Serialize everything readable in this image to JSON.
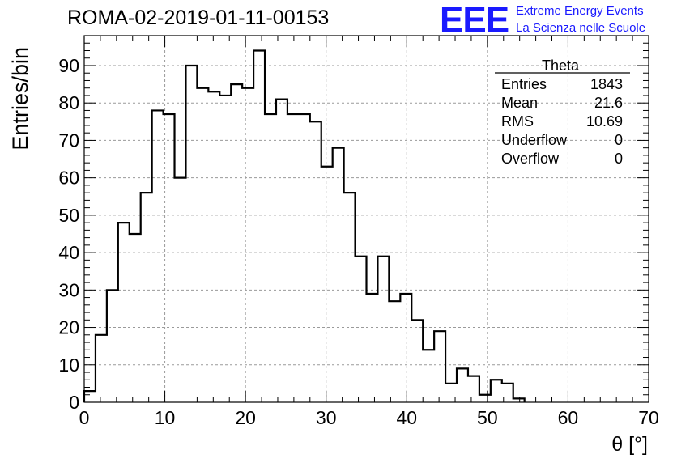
{
  "header": {
    "run_title": "ROMA-02-2019-01-11-00153",
    "logo_text": "EEE",
    "logo_line1": "Extreme Energy Events",
    "logo_line2": "La Scienza nelle Scuole"
  },
  "stats_box": {
    "title": "Theta",
    "rows": [
      {
        "label": "Entries",
        "value": "1843"
      },
      {
        "label": "Mean",
        "value": "21.6"
      },
      {
        "label": "RMS",
        "value": "10.69"
      },
      {
        "label": "Underflow",
        "value": "0"
      },
      {
        "label": "Overflow",
        "value": "0"
      }
    ]
  },
  "chart_data": {
    "type": "histogram",
    "xlabel": "θ [°]",
    "ylabel": "Entries/bin",
    "xlim": [
      0,
      70
    ],
    "ylim": [
      0,
      98
    ],
    "x_ticks": [
      0,
      10,
      20,
      30,
      40,
      50,
      60,
      70
    ],
    "y_ticks": [
      0,
      10,
      20,
      30,
      40,
      50,
      60,
      70,
      80,
      90
    ],
    "grid": true,
    "bin_edges": [
      0,
      1.4,
      2.8,
      4.2,
      5.6,
      7.0,
      8.4,
      9.8,
      11.2,
      12.6,
      14.0,
      15.4,
      16.8,
      18.2,
      19.6,
      21.0,
      22.4,
      23.8,
      25.2,
      26.6,
      28.0,
      29.4,
      30.8,
      32.2,
      33.6,
      35.0,
      36.4,
      37.8,
      39.2,
      40.6,
      42.0,
      43.4,
      44.8,
      46.2,
      47.6,
      49.0,
      50.4,
      51.8,
      53.2,
      54.6
    ],
    "values": [
      3,
      18,
      30,
      48,
      45,
      56,
      78,
      77,
      60,
      90,
      84,
      83,
      82,
      85,
      84,
      94,
      77,
      81,
      77,
      77,
      75,
      63,
      68,
      56,
      39,
      29,
      39,
      27,
      29,
      22,
      14,
      19,
      5,
      9,
      7,
      2,
      6,
      5,
      1
    ]
  }
}
